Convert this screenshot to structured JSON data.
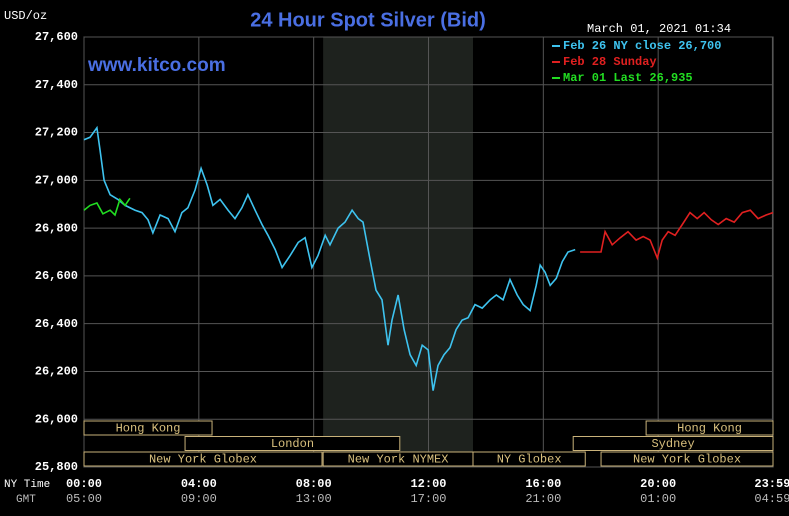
{
  "chart_data": {
    "type": "line",
    "title": "24 Hour Spot Silver (Bid)",
    "unit_label": "USD/oz",
    "timestamp": "March 01, 2021 01:34",
    "watermark": "www.kitco.com",
    "x_row_labels": [
      "NY Time",
      "GMT"
    ],
    "xlim": [
      0,
      24
    ],
    "xticks": [
      {
        "value": 0,
        "label": "00:00"
      },
      {
        "value": 4,
        "label": "04:00"
      },
      {
        "value": 8,
        "label": "08:00"
      },
      {
        "value": 12,
        "label": "12:00"
      },
      {
        "value": 16,
        "label": "16:00"
      },
      {
        "value": 20,
        "label": "20:00"
      },
      {
        "value": 23.98,
        "label": "23:59"
      }
    ],
    "gmt_labels": [
      "05:00",
      "09:00",
      "13:00",
      "17:00",
      "21:00",
      "01:00",
      "04:59"
    ],
    "ylim": [
      25800,
      27600
    ],
    "yticks": [
      {
        "value": 25800,
        "label": "25,800"
      },
      {
        "value": 26000,
        "label": "26,000"
      },
      {
        "value": 26200,
        "label": "26,200"
      },
      {
        "value": 26400,
        "label": "26,400"
      },
      {
        "value": 26600,
        "label": "26,600"
      },
      {
        "value": 26800,
        "label": "26,800"
      },
      {
        "value": 27000,
        "label": "27,000"
      },
      {
        "value": 27200,
        "label": "27,200"
      },
      {
        "value": 27400,
        "label": "27,400"
      },
      {
        "value": 27600,
        "label": "27,600"
      }
    ],
    "grid": true,
    "shade": [
      8.33,
      13.55
    ],
    "sessions": [
      {
        "label": "Hong Kong",
        "start": 0,
        "end": 4.46,
        "row": 0
      },
      {
        "label": "Hong Kong",
        "start": 19.58,
        "end": 24,
        "row": 0
      },
      {
        "label": "London",
        "start": 3.52,
        "end": 11.0,
        "row": 1
      },
      {
        "label": "Sydney",
        "start": 17.04,
        "end": 24,
        "row": 1
      },
      {
        "label": "New York Globex",
        "start": 0,
        "end": 8.29,
        "row": 2
      },
      {
        "label": "New York NYMEX",
        "start": 8.33,
        "end": 13.55,
        "row": 2
      },
      {
        "label": "NY Globex",
        "start": 13.55,
        "end": 17.46,
        "row": 2
      },
      {
        "label": "New York Globex",
        "start": 18.01,
        "end": 24,
        "row": 2
      }
    ],
    "series": [
      {
        "name": "Feb 26 NY close 26,700",
        "color": "#3ec3ef",
        "x": [
          0,
          0.21,
          0.45,
          0.56,
          0.7,
          0.91,
          1.18,
          1.43,
          1.78,
          2.02,
          2.23,
          2.4,
          2.65,
          2.93,
          3.17,
          3.41,
          3.62,
          3.87,
          4.08,
          4.29,
          4.49,
          4.74,
          5.02,
          5.26,
          5.5,
          5.71,
          5.96,
          6.2,
          6.41,
          6.66,
          6.9,
          7.18,
          7.46,
          7.7,
          7.94,
          8.15,
          8.4,
          8.57,
          8.85,
          9.09,
          9.34,
          9.55,
          9.72,
          9.97,
          10.17,
          10.38,
          10.59,
          10.73,
          10.94,
          11.15,
          11.36,
          11.57,
          11.78,
          11.99,
          12.16,
          12.33,
          12.54,
          12.75,
          12.96,
          13.17,
          13.38,
          13.62,
          13.87,
          14.15,
          14.36,
          14.6,
          14.84,
          15.09,
          15.3,
          15.54,
          15.75,
          15.89,
          16.06,
          16.24,
          16.45,
          16.66,
          16.86,
          17.11
        ],
        "values": [
          27170,
          27180,
          27220,
          27125,
          27000,
          26940,
          26920,
          26895,
          26875,
          26865,
          26835,
          26780,
          26855,
          26840,
          26785,
          26865,
          26885,
          26960,
          27050,
          26980,
          26895,
          26920,
          26875,
          26840,
          26885,
          26940,
          26875,
          26815,
          26770,
          26710,
          26635,
          26685,
          26740,
          26760,
          26635,
          26685,
          26770,
          26730,
          26800,
          26825,
          26875,
          26840,
          26825,
          26665,
          26540,
          26500,
          26310,
          26415,
          26520,
          26375,
          26270,
          26225,
          26310,
          26290,
          26120,
          26225,
          26270,
          26300,
          26375,
          26415,
          26425,
          26480,
          26465,
          26500,
          26520,
          26500,
          26585,
          26520,
          26480,
          26455,
          26560,
          26645,
          26615,
          26560,
          26590,
          26660,
          26700,
          26710
        ]
      },
      {
        "name": "Feb 28 Sunday",
        "color": "#e02020",
        "x": [
          17.28,
          18.01,
          18.15,
          18.4,
          18.68,
          18.95,
          19.23,
          19.48,
          19.72,
          19.97,
          20.14,
          20.35,
          20.59,
          20.84,
          21.11,
          21.36,
          21.6,
          21.85,
          22.09,
          22.37,
          22.65,
          22.93,
          23.21,
          23.48,
          23.76,
          24
        ],
        "values": [
          26700,
          26700,
          26785,
          26730,
          26760,
          26785,
          26750,
          26765,
          26750,
          26675,
          26750,
          26785,
          26770,
          26815,
          26865,
          26840,
          26865,
          26835,
          26815,
          26840,
          26825,
          26865,
          26875,
          26840,
          26855,
          26865
        ]
      },
      {
        "name": "Mar 01 Last 26,935",
        "color": "#22dd22",
        "x": [
          0,
          0.21,
          0.45,
          0.66,
          0.91,
          1.08,
          1.25,
          1.43,
          1.6
        ],
        "values": [
          26875,
          26895,
          26905,
          26860,
          26875,
          26855,
          26920,
          26895,
          26925
        ]
      }
    ]
  }
}
